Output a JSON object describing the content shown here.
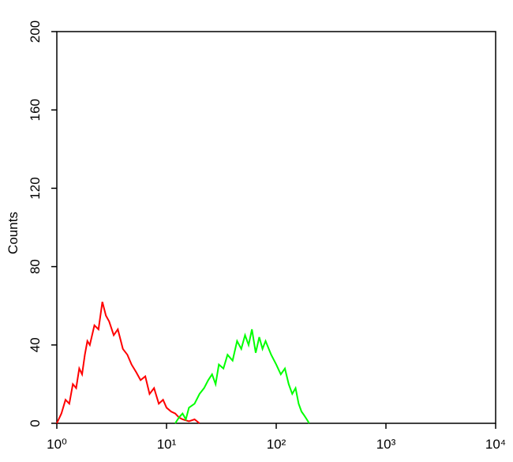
{
  "chart_data": {
    "type": "line",
    "y_label": "Counts",
    "log_x": true,
    "xlim": [
      1,
      10000
    ],
    "xticks": [
      {
        "value": 1,
        "label": "10⁰"
      },
      {
        "value": 10,
        "label": "10¹"
      },
      {
        "value": 100,
        "label": "10²"
      },
      {
        "value": 1000,
        "label": "10³"
      },
      {
        "value": 10000,
        "label": "10⁴"
      }
    ],
    "ylim": [
      0,
      200
    ],
    "yticks": [
      0,
      40,
      80,
      120,
      160,
      200
    ],
    "series": [
      {
        "color": "#ff0000",
        "x": [
          1.0,
          1.1,
          1.2,
          1.3,
          1.4,
          1.5,
          1.6,
          1.7,
          1.8,
          1.9,
          2.0,
          2.2,
          2.4,
          2.6,
          2.8,
          3.0,
          3.3,
          3.6,
          4.0,
          4.4,
          4.8,
          5.3,
          5.8,
          6.4,
          7.0,
          7.7,
          8.5,
          9.3,
          10,
          11,
          12,
          13,
          14,
          16,
          18,
          20
        ],
        "values": [
          0,
          5,
          12,
          10,
          20,
          18,
          28,
          25,
          35,
          42,
          40,
          50,
          48,
          62,
          55,
          52,
          45,
          48,
          38,
          35,
          30,
          26,
          22,
          24,
          15,
          18,
          10,
          12,
          8,
          6,
          5,
          3,
          2,
          1,
          2,
          0
        ]
      },
      {
        "color": "#00ff00",
        "x": [
          12,
          13,
          14,
          15,
          16,
          18,
          20,
          22,
          24,
          26,
          28,
          30,
          33,
          36,
          40,
          44,
          48,
          52,
          56,
          60,
          65,
          70,
          75,
          80,
          90,
          100,
          110,
          120,
          130,
          140,
          150,
          160,
          170,
          180,
          190,
          200
        ],
        "values": [
          0,
          3,
          5,
          2,
          8,
          10,
          15,
          18,
          22,
          25,
          20,
          30,
          28,
          35,
          32,
          42,
          38,
          45,
          40,
          48,
          36,
          44,
          38,
          42,
          35,
          30,
          25,
          28,
          20,
          15,
          18,
          10,
          6,
          4,
          2,
          0
        ]
      }
    ]
  }
}
